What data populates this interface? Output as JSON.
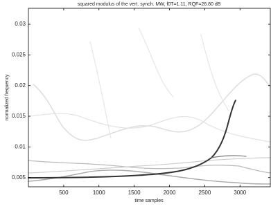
{
  "chart_data": {
    "type": "heatmap",
    "title": "squared modulus of the vert. synch. MW, f0T=1.11, RQF=26.80 dB",
    "x_label": "time samples",
    "y_label": "normalized frequency",
    "xlim": [
      0,
      3430
    ],
    "xticks": [
      500,
      1000,
      1500,
      2000,
      2500,
      3000
    ],
    "ylim": [
      0.0035,
      0.0326
    ],
    "yticks": [
      0.005,
      0.01,
      0.015,
      0.02,
      0.025,
      0.03
    ],
    "colormap": "gray_r"
  }
}
